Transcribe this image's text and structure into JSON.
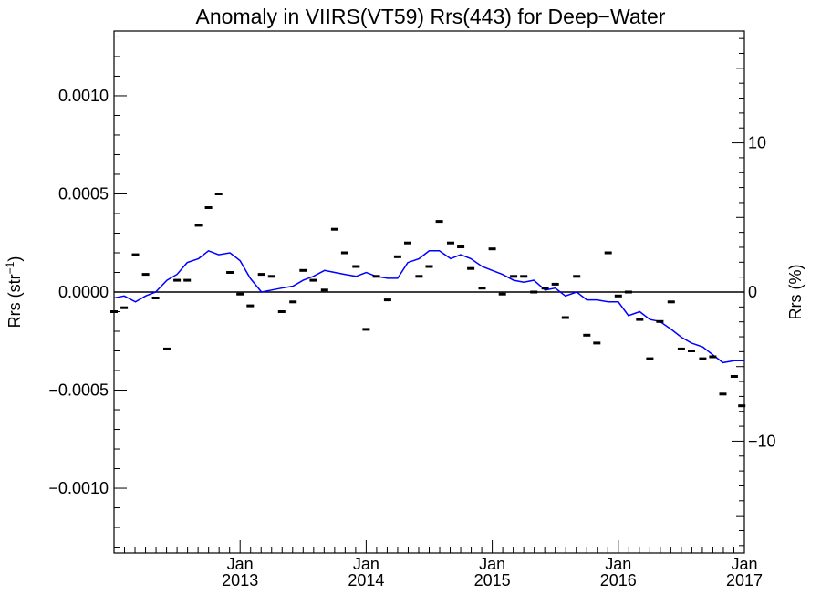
{
  "chart_data": {
    "type": "line",
    "title": "Anomaly in VIIRS(VT59) Rrs(443) for Deep−Water",
    "ylabel_left": "Rrs (str",
    "ylabel_left_sup": "−1",
    "ylabel_left_close": ")",
    "ylabel_right": "Rrs (%)",
    "xlim": [
      2012.0,
      2017.0
    ],
    "ylim_left": [
      -0.00133,
      0.00133
    ],
    "ylim_right": [
      -17.5,
      17.5
    ],
    "y_ticks_left": [
      {
        "value": 0.001,
        "label": "0.0010"
      },
      {
        "value": 0.0005,
        "label": "0.0005"
      },
      {
        "value": 0.0,
        "label": "0.0000"
      },
      {
        "value": -0.0005,
        "label": "−0.0005"
      },
      {
        "value": -0.001,
        "label": "−0.0010"
      }
    ],
    "y_ticks_right": [
      {
        "value": 10,
        "label": "10"
      },
      {
        "value": 0,
        "label": "0"
      },
      {
        "value": -10,
        "label": "−10"
      }
    ],
    "x_ticks": [
      {
        "value": 2013.0,
        "label1": "Jan",
        "label2": "2013"
      },
      {
        "value": 2014.0,
        "label1": "Jan",
        "label2": "2014"
      },
      {
        "value": 2015.0,
        "label1": "Jan",
        "label2": "2015"
      },
      {
        "value": 2016.0,
        "label1": "Jan",
        "label2": "2016"
      },
      {
        "value": 2017.0,
        "label1": "Jan",
        "label2": "2017"
      }
    ],
    "reference_line": 0.0,
    "series": [
      {
        "style": "marker-dash",
        "color": "#000000",
        "x": [
          2012.0,
          2012.08,
          2012.17,
          2012.25,
          2012.33,
          2012.42,
          2012.5,
          2012.58,
          2012.67,
          2012.75,
          2012.83,
          2012.92,
          2013.0,
          2013.08,
          2013.17,
          2013.25,
          2013.33,
          2013.42,
          2013.5,
          2013.58,
          2013.67,
          2013.75,
          2013.83,
          2013.92,
          2014.0,
          2014.08,
          2014.17,
          2014.25,
          2014.33,
          2014.42,
          2014.5,
          2014.58,
          2014.67,
          2014.75,
          2014.83,
          2014.92,
          2015.0,
          2015.08,
          2015.17,
          2015.25,
          2015.33,
          2015.42,
          2015.5,
          2015.58,
          2015.67,
          2015.75,
          2015.83,
          2015.92,
          2016.0,
          2016.08,
          2016.17,
          2016.25,
          2016.33,
          2016.42,
          2016.5,
          2016.58,
          2016.67,
          2016.75,
          2016.83,
          2016.92,
          2016.98
        ],
        "y": [
          -0.0001,
          -8e-05,
          0.00019,
          9e-05,
          -3e-05,
          -0.00029,
          6e-05,
          6e-05,
          0.00034,
          0.00043,
          0.0005,
          0.0001,
          -1e-05,
          -7e-05,
          9e-05,
          8e-05,
          -0.0001,
          -5e-05,
          0.00011,
          6e-05,
          1e-05,
          0.00032,
          0.0002,
          0.00013,
          -0.00019,
          8e-05,
          -4e-05,
          0.00018,
          0.00025,
          8e-05,
          0.00013,
          0.00036,
          0.00025,
          0.00023,
          0.00012,
          2e-05,
          0.00022,
          -1e-05,
          8e-05,
          8e-05,
          0.0,
          2e-05,
          4e-05,
          -0.00013,
          8e-05,
          -0.00022,
          -0.00026,
          0.0002,
          -2e-05,
          0.0,
          -0.00014,
          -0.00034,
          -0.00015,
          -5e-05,
          -0.00029,
          -0.0003,
          -0.00034,
          -0.00033,
          -0.00052,
          -0.00043,
          -0.00058
        ]
      },
      {
        "style": "line",
        "color": "#0000ff",
        "x": [
          2012.0,
          2012.08,
          2012.17,
          2012.25,
          2012.33,
          2012.42,
          2012.5,
          2012.58,
          2012.67,
          2012.75,
          2012.83,
          2012.92,
          2013.0,
          2013.08,
          2013.17,
          2013.25,
          2013.33,
          2013.42,
          2013.5,
          2013.58,
          2013.67,
          2013.75,
          2013.83,
          2013.92,
          2014.0,
          2014.08,
          2014.17,
          2014.25,
          2014.33,
          2014.42,
          2014.5,
          2014.58,
          2014.67,
          2014.75,
          2014.83,
          2014.92,
          2015.0,
          2015.08,
          2015.17,
          2015.25,
          2015.33,
          2015.42,
          2015.5,
          2015.58,
          2015.67,
          2015.75,
          2015.83,
          2015.92,
          2016.0,
          2016.08,
          2016.17,
          2016.25,
          2016.33,
          2016.42,
          2016.5,
          2016.58,
          2016.67,
          2016.75,
          2016.83,
          2016.92,
          2017.0
        ],
        "y": [
          -3e-05,
          -2e-05,
          -5e-05,
          -2e-05,
          0.0,
          6e-05,
          9e-05,
          0.00015,
          0.00017,
          0.00021,
          0.00019,
          0.0002,
          0.00016,
          7e-05,
          0.0,
          1e-05,
          2e-05,
          3e-05,
          6e-05,
          8e-05,
          0.00011,
          0.0001,
          9e-05,
          8e-05,
          0.0001,
          8e-05,
          7e-05,
          7e-05,
          0.00015,
          0.00017,
          0.00021,
          0.00021,
          0.00017,
          0.00019,
          0.00017,
          0.00013,
          0.00011,
          9e-05,
          6e-05,
          5e-05,
          6e-05,
          1e-05,
          2e-05,
          -2e-05,
          0.0,
          -4e-05,
          -4e-05,
          -5e-05,
          -5e-05,
          -0.00012,
          -0.0001,
          -0.00014,
          -0.00015,
          -0.00019,
          -0.00023,
          -0.00026,
          -0.00028,
          -0.00032,
          -0.00036,
          -0.00035,
          -0.00035
        ]
      }
    ]
  }
}
